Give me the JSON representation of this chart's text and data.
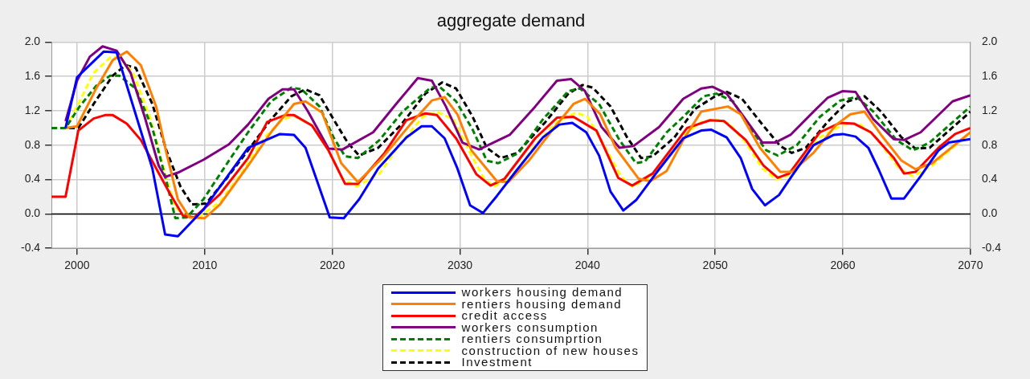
{
  "chart_data": {
    "type": "line",
    "title": "aggregate demand",
    "xlim": [
      1998,
      2070
    ],
    "xticks": [
      2000,
      2010,
      2020,
      2030,
      2040,
      2050,
      2060,
      2070
    ],
    "ylim": [
      -0.4,
      2.0
    ],
    "yticks": [
      {
        "value": -0.4,
        "label": "-0.4"
      },
      {
        "value": 0,
        "label": "0.0"
      },
      {
        "value": 0.4,
        "label": "0.4"
      },
      {
        "value": 0.8,
        "label": "0.8"
      },
      {
        "value": 1.2,
        "label": "1.2"
      },
      {
        "value": 1.6,
        "label": "1.6"
      },
      {
        "value": 2.0,
        "label": "2.0"
      }
    ],
    "y2lim": [
      -0.4,
      2.0
    ],
    "y2ticks": [
      {
        "value": -0.4,
        "label": "-0.4"
      },
      {
        "value": 0,
        "label": "0.0"
      },
      {
        "value": 0.4,
        "label": "0.4"
      },
      {
        "value": 0.8,
        "label": "0.8"
      },
      {
        "value": 1.2,
        "label": "1.2"
      },
      {
        "value": 1.6,
        "label": "1.6"
      },
      {
        "value": 2.0,
        "label": "2.0"
      }
    ],
    "grid": true,
    "legend": "bottom",
    "marker": "none",
    "ref_lines": [
      {
        "axis": "y",
        "value": 0,
        "color": "#000000"
      }
    ],
    "series": [
      {
        "name": "workers  housing demand",
        "color": "#0000ff",
        "line_style": "solid",
        "x": [
          1999.1,
          2000.0,
          2002.1,
          2003.1,
          2005.9,
          2006.9,
          2007.9,
          2009.9,
          2013.4,
          2015.9,
          2017.0,
          2017.9,
          2019.8,
          2020.9,
          2022.1,
          2023.6,
          2025.8,
          2027.0,
          2027.8,
          2028.8,
          2029.8,
          2030.8,
          2031.8,
          2032.9,
          2034.3,
          2036.5,
          2037.8,
          2038.8,
          2039.9,
          2040.9,
          2041.8,
          2042.8,
          2043.8,
          2045.4,
          2047.5,
          2048.9,
          2049.7,
          2050.9,
          2052.0,
          2052.9,
          2053.9,
          2055.0,
          2056.0,
          2057.7,
          2059.3,
          2060.0,
          2061.0,
          2062.0,
          2062.8,
          2063.8,
          2064.8,
          2066.1,
          2067.5,
          2068.3,
          2070
        ],
        "values": [
          1.0,
          1.59,
          1.89,
          1.88,
          0.53,
          -0.24,
          -0.26,
          0.05,
          0.77,
          0.93,
          0.92,
          0.77,
          -0.04,
          -0.05,
          0.17,
          0.53,
          0.89,
          1.02,
          1.02,
          0.88,
          0.53,
          0.1,
          0.01,
          0.21,
          0.48,
          0.89,
          1.04,
          1.06,
          0.95,
          0.68,
          0.26,
          0.04,
          0.16,
          0.48,
          0.88,
          0.97,
          0.98,
          0.89,
          0.65,
          0.29,
          0.1,
          0.22,
          0.44,
          0.8,
          0.92,
          0.93,
          0.9,
          0.77,
          0.52,
          0.18,
          0.18,
          0.44,
          0.74,
          0.83,
          0.87
        ]
      },
      {
        "name": "rentiers  housing demand",
        "color": "#ff8000",
        "line_style": "solid",
        "x": [
          1999.1,
          2000.0,
          2001.5,
          2002.8,
          2003.9,
          2005.0,
          2006.2,
          2007.0,
          2007.9,
          2008.8,
          2010.0,
          2011.2,
          2013.4,
          2015.2,
          2017.0,
          2017.9,
          2019.2,
          2020.7,
          2022.0,
          2023.9,
          2026.1,
          2027.8,
          2028.8,
          2029.8,
          2030.9,
          2032.9,
          2033.8,
          2035.4,
          2037.1,
          2038.9,
          2039.8,
          2041.0,
          2042.2,
          2044.0,
          2044.9,
          2046.2,
          2047.5,
          2048.9,
          2051.0,
          2052.0,
          2053.5,
          2055.1,
          2056.0,
          2057.7,
          2059.5,
          2060.6,
          2061.7,
          2063.0,
          2064.6,
          2065.7,
          2067.0,
          2070
        ],
        "values": [
          1.0,
          1.02,
          1.46,
          1.79,
          1.89,
          1.73,
          1.25,
          0.71,
          0.17,
          -0.04,
          -0.05,
          0.11,
          0.56,
          0.95,
          1.28,
          1.31,
          1.18,
          0.59,
          0.37,
          0.65,
          1.04,
          1.32,
          1.36,
          1.16,
          0.74,
          0.38,
          0.37,
          0.62,
          0.95,
          1.28,
          1.34,
          1.16,
          0.77,
          0.41,
          0.38,
          0.5,
          0.86,
          1.19,
          1.25,
          1.16,
          0.77,
          0.49,
          0.49,
          0.71,
          1.04,
          1.16,
          1.19,
          0.92,
          0.62,
          0.52,
          0.59,
          0.95
        ]
      },
      {
        "name": "credit access",
        "color": "#ff0000",
        "line_style": "solid",
        "x": [
          1998.0,
          1999.1,
          2000.1,
          2001.3,
          2002.2,
          2002.8,
          2003.9,
          2005.0,
          2006.2,
          2007.3,
          2008.3,
          2009.2,
          2011.2,
          2013.4,
          2014.9,
          2016.3,
          2017.0,
          2018.4,
          2019.7,
          2021.0,
          2022.0,
          2024.1,
          2025.8,
          2027.3,
          2028.2,
          2029.7,
          2031.3,
          2032.4,
          2033.5,
          2035.9,
          2037.6,
          2038.9,
          2040.7,
          2042.4,
          2043.5,
          2045.1,
          2047.8,
          2049.6,
          2050.7,
          2052.4,
          2053.8,
          2054.9,
          2055.8,
          2058.2,
          2059.8,
          2060.9,
          2062.2,
          2064.0,
          2064.8,
          2065.7,
          2067.5,
          2068.8,
          2070
        ],
        "values": [
          0.2,
          0.2,
          0.97,
          1.11,
          1.15,
          1.15,
          1.05,
          0.86,
          0.53,
          0.23,
          -0.02,
          -0.04,
          0.23,
          0.65,
          1.07,
          1.15,
          1.15,
          1.03,
          0.74,
          0.35,
          0.35,
          0.71,
          1.09,
          1.17,
          1.15,
          0.88,
          0.46,
          0.33,
          0.41,
          0.88,
          1.12,
          1.13,
          0.97,
          0.42,
          0.33,
          0.47,
          1.0,
          1.09,
          1.08,
          0.86,
          0.56,
          0.42,
          0.47,
          0.95,
          1.06,
          1.05,
          0.95,
          0.65,
          0.47,
          0.49,
          0.77,
          0.93,
          1.0
        ]
      },
      {
        "name": "workers  consumption",
        "color": "#800080",
        "line_style": "solid",
        "x": [
          1999.1,
          2000.0,
          2001.0,
          2002.0,
          2003.1,
          2004.2,
          2005.3,
          2006.4,
          2006.9,
          2007.9,
          2009.9,
          2011.9,
          2013.4,
          2015.0,
          2016.1,
          2017.0,
          2018.1,
          2019.7,
          2020.8,
          2023.2,
          2025.0,
          2026.7,
          2027.8,
          2028.9,
          2030.2,
          2031.5,
          2033.9,
          2035.9,
          2037.6,
          2038.7,
          2039.8,
          2041.1,
          2042.5,
          2043.6,
          2045.6,
          2047.5,
          2048.9,
          2049.8,
          2050.9,
          2052.1,
          2053.7,
          2054.7,
          2055.9,
          2057.7,
          2058.8,
          2060.0,
          2061.0,
          2062.4,
          2064.0,
          2064.8,
          2066.1,
          2068.6,
          2070
        ],
        "values": [
          1.08,
          1.55,
          1.83,
          1.95,
          1.9,
          1.64,
          1.13,
          0.56,
          0.43,
          0.48,
          0.63,
          0.81,
          1.04,
          1.34,
          1.45,
          1.45,
          1.19,
          0.76,
          0.75,
          0.95,
          1.28,
          1.58,
          1.55,
          1.25,
          0.83,
          0.75,
          0.92,
          1.25,
          1.55,
          1.57,
          1.43,
          1.01,
          0.77,
          0.79,
          1.01,
          1.34,
          1.46,
          1.48,
          1.4,
          1.16,
          0.83,
          0.83,
          0.92,
          1.19,
          1.35,
          1.43,
          1.42,
          1.1,
          0.87,
          0.86,
          0.95,
          1.31,
          1.38
        ]
      },
      {
        "name": "rentiers consumprtion",
        "color": "#008000",
        "line_style": "dashed",
        "x": [
          1998.0,
          1999.1,
          2000.2,
          2001.5,
          2002.6,
          2003.3,
          2004.6,
          2005.9,
          2007.0,
          2007.7,
          2008.6,
          2009.9,
          2011.9,
          2013.4,
          2015.2,
          2016.8,
          2017.6,
          2019.0,
          2020.1,
          2021.0,
          2022.0,
          2023.7,
          2025.5,
          2027.7,
          2028.4,
          2029.7,
          2031.0,
          2032.1,
          2033.0,
          2034.6,
          2036.5,
          2038.5,
          2039.4,
          2040.9,
          2042.5,
          2043.8,
          2044.5,
          2046.2,
          2047.5,
          2049.1,
          2050.1,
          2051.4,
          2052.7,
          2054.0,
          2054.9,
          2056.4,
          2058.2,
          2059.8,
          2061.1,
          2062.4,
          2064.2,
          2065.5,
          2066.8,
          2070
        ],
        "values": [
          1.0,
          1.0,
          1.25,
          1.49,
          1.61,
          1.61,
          1.46,
          1.0,
          0.38,
          -0.05,
          -0.04,
          0.17,
          0.62,
          0.95,
          1.31,
          1.47,
          1.45,
          1.25,
          0.89,
          0.67,
          0.65,
          0.86,
          1.19,
          1.47,
          1.48,
          1.31,
          0.98,
          0.62,
          0.59,
          0.71,
          1.1,
          1.43,
          1.46,
          1.28,
          0.86,
          0.59,
          0.61,
          0.95,
          1.13,
          1.37,
          1.4,
          1.31,
          1.01,
          0.74,
          0.68,
          0.8,
          1.13,
          1.32,
          1.36,
          1.19,
          0.86,
          0.74,
          0.83,
          1.25
        ]
      },
      {
        "name": "construction of new houses",
        "color": "#ffff00",
        "line_style": "dashed",
        "x": [
          1999.1,
          2000.0,
          2001.3,
          2002.6,
          2003.3,
          2004.4,
          2005.7,
          2006.8,
          2007.7,
          2008.6,
          2009.5,
          2011.2,
          2013.0,
          2014.7,
          2016.1,
          2017.0,
          2018.4,
          2019.7,
          2020.8,
          2021.9,
          2023.7,
          2025.4,
          2027.1,
          2028.2,
          2029.5,
          2030.8,
          2031.9,
          2032.7,
          2034.1,
          2035.9,
          2037.6,
          2039.1,
          2040.0,
          2041.3,
          2042.6,
          2043.5,
          2045.1,
          2047.3,
          2048.9,
          2050.0,
          2051.1,
          2052.4,
          2053.7,
          2054.8,
          2055.9,
          2058.2,
          2060.0,
          2061.3,
          2062.6,
          2064.4,
          2065.5,
          2067.0,
          2070
        ],
        "values": [
          1.0,
          1.25,
          1.64,
          1.82,
          1.83,
          1.64,
          1.13,
          0.53,
          0.08,
          -0.04,
          -0.04,
          0.14,
          0.5,
          0.89,
          1.1,
          1.14,
          1.03,
          0.74,
          0.41,
          0.32,
          0.47,
          0.83,
          1.13,
          1.19,
          1.1,
          0.71,
          0.41,
          0.32,
          0.44,
          0.8,
          1.07,
          1.18,
          1.13,
          0.8,
          0.44,
          0.32,
          0.44,
          0.89,
          1.07,
          1.1,
          1.05,
          0.83,
          0.53,
          0.4,
          0.46,
          0.89,
          1.04,
          1.05,
          0.89,
          0.53,
          0.44,
          0.56,
          0.95
        ]
      },
      {
        "name": "Investment",
        "color": "#000000",
        "line_style": "dashed",
        "x": [
          1998.0,
          2000.1,
          2001.3,
          2002.8,
          2003.8,
          2004.6,
          2005.9,
          2007.0,
          2008.1,
          2009.0,
          2010.1,
          2011.7,
          2013.4,
          2015.2,
          2016.8,
          2017.9,
          2019.0,
          2020.1,
          2021.2,
          2022.1,
          2023.6,
          2025.4,
          2027.3,
          2028.6,
          2029.7,
          2031.0,
          2032.1,
          2033.2,
          2034.5,
          2036.7,
          2038.5,
          2039.6,
          2040.4,
          2041.8,
          2043.1,
          2044.2,
          2045.1,
          2046.8,
          2048.4,
          2050.0,
          2050.9,
          2052.1,
          2053.7,
          2055.1,
          2056.0,
          2057.1,
          2058.8,
          2060.4,
          2061.7,
          2063.0,
          2064.6,
          2065.7,
          2066.8,
          2070
        ],
        "values": [
          1.0,
          1.0,
          1.28,
          1.61,
          1.73,
          1.7,
          1.28,
          0.74,
          0.32,
          0.11,
          0.12,
          0.41,
          0.74,
          1.1,
          1.37,
          1.45,
          1.38,
          1.1,
          0.83,
          0.68,
          0.77,
          1.04,
          1.4,
          1.53,
          1.46,
          1.13,
          0.77,
          0.65,
          0.71,
          1.07,
          1.4,
          1.5,
          1.47,
          1.25,
          0.89,
          0.65,
          0.67,
          0.89,
          1.22,
          1.37,
          1.42,
          1.34,
          1.04,
          0.79,
          0.71,
          0.77,
          1.07,
          1.31,
          1.37,
          1.19,
          0.89,
          0.76,
          0.77,
          1.19
        ]
      }
    ]
  }
}
